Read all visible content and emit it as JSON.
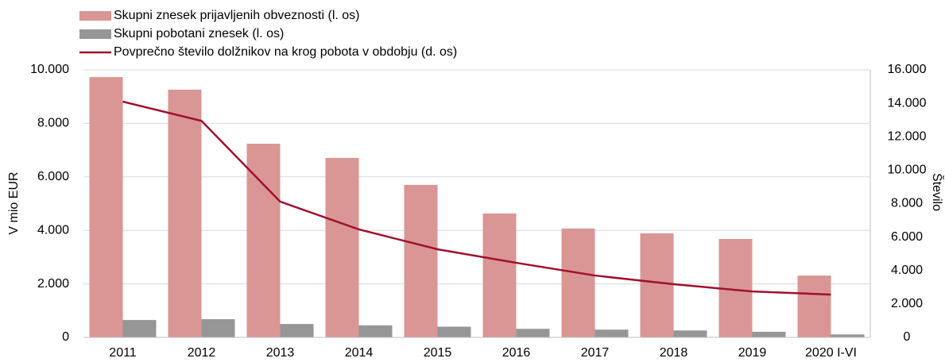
{
  "chart_data": {
    "type": "bar_line",
    "categories": [
      "2011",
      "2012",
      "2013",
      "2014",
      "2015",
      "2016",
      "2017",
      "2018",
      "2019",
      "2020 I-VI"
    ],
    "series": [
      {
        "name": "Skupni znesek prijavljenih obveznosti (l. os)",
        "color": "#d99694",
        "type": "bar",
        "axis": "y",
        "values": [
          9730,
          9260,
          7240,
          6710,
          5700,
          4630,
          4070,
          3890,
          3680,
          2310
        ]
      },
      {
        "name": "Skupni pobotani znesek (l. os)",
        "color": "#969696",
        "type": "bar",
        "axis": "y",
        "values": [
          650,
          680,
          500,
          450,
          400,
          320,
          290,
          260,
          210,
          110
        ]
      },
      {
        "name": "Povprečno število dolžnikov na krog pobota v obdobju (d. os)",
        "color": "#a0102c",
        "type": "line",
        "axis": "y2",
        "values": [
          14100,
          12950,
          8120,
          6460,
          5270,
          4460,
          3700,
          3180,
          2750,
          2560
        ]
      }
    ],
    "ylabel": "V mio EUR",
    "y2label": "Število",
    "ylim": [
      0,
      10000
    ],
    "yticks": [
      0,
      {
        "value": 2000,
        "label": "2.000"
      },
      {
        "value": 4000,
        "label": "4.000"
      },
      {
        "value": 6000,
        "label": "6.000"
      },
      {
        "value": 8000,
        "label": "8.000"
      },
      {
        "value": 10000,
        "label": "10.000"
      }
    ],
    "y2lim": [
      0,
      16000
    ],
    "y2ticks": [
      0,
      {
        "value": 2000,
        "label": "2.000"
      },
      {
        "value": 4000,
        "label": "4.000"
      },
      {
        "value": 6000,
        "label": "6.000"
      },
      {
        "value": 8000,
        "label": "8.000"
      },
      {
        "value": 10000,
        "label": "10.000"
      },
      {
        "value": 12000,
        "label": "12.000"
      },
      {
        "value": 14000,
        "label": "14.000"
      },
      {
        "value": 16000,
        "label": "16.000"
      }
    ],
    "grid": true,
    "legend": "top-left"
  }
}
